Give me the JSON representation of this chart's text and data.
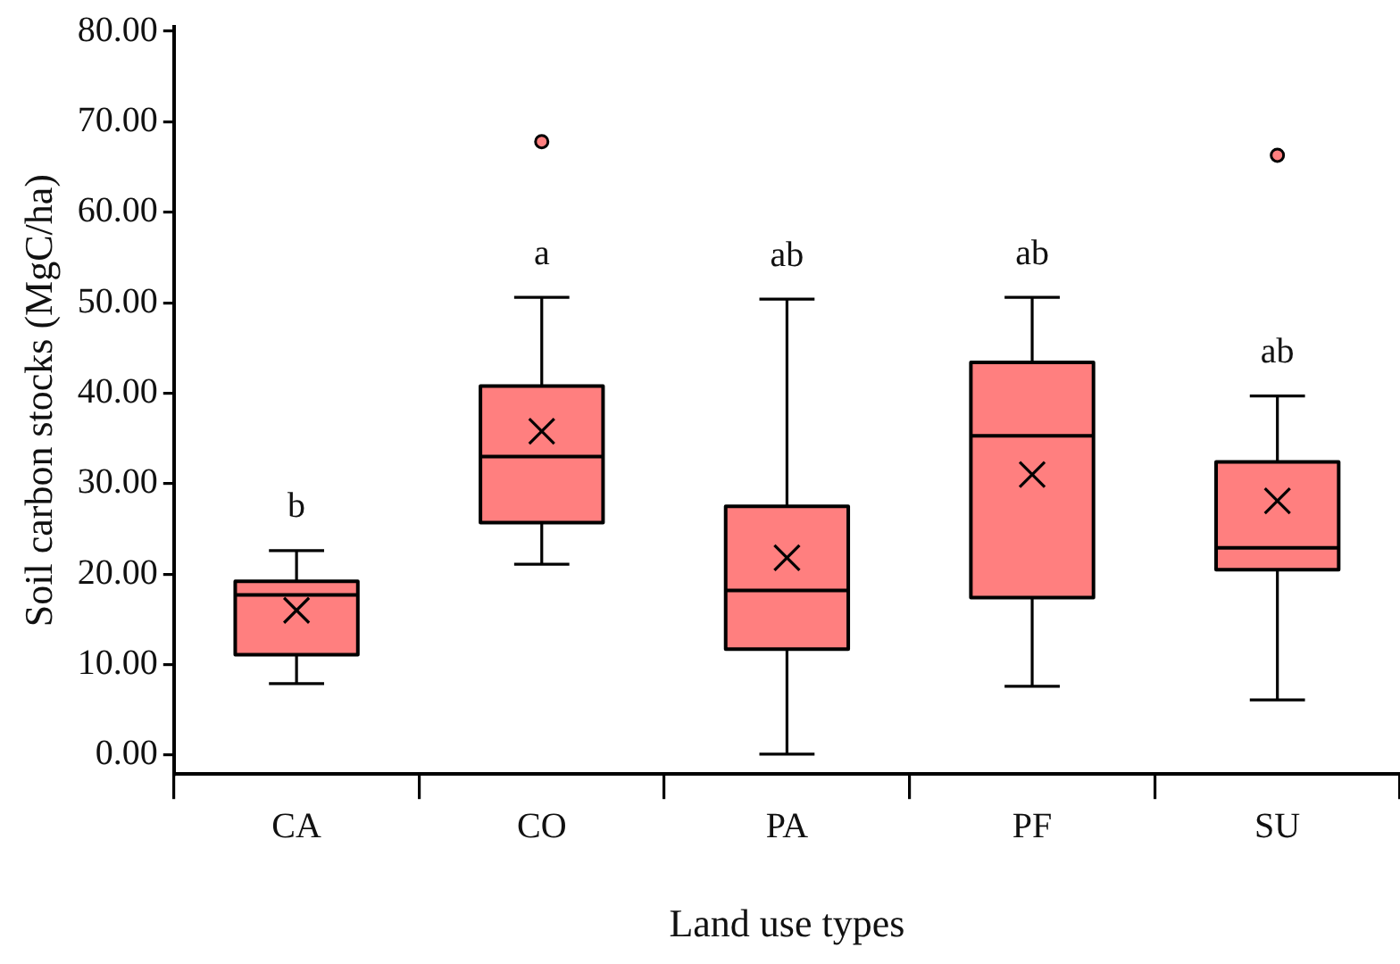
{
  "chart_data": {
    "type": "box",
    "categories": [
      "CA",
      "CO",
      "PA",
      "PF",
      "SU"
    ],
    "color": "#ff7f7f",
    "boxes": [
      {
        "low": 7.9,
        "q1": 11.1,
        "median": 17.7,
        "q3": 19.2,
        "high": 22.6,
        "mean": 16.0
      },
      {
        "low": 21.1,
        "q1": 25.7,
        "median": 33.0,
        "q3": 40.8,
        "high": 50.6,
        "mean": 35.8,
        "outliers": [
          67.8
        ]
      },
      {
        "low": 0.1,
        "q1": 11.7,
        "median": 18.2,
        "q3": 27.5,
        "high": 50.4,
        "mean": 21.8
      },
      {
        "low": 7.6,
        "q1": 17.4,
        "median": 35.3,
        "q3": 43.4,
        "high": 50.6,
        "mean": 31.0
      },
      {
        "low": 6.1,
        "q1": 20.5,
        "median": 22.9,
        "q3": 32.4,
        "high": 39.7,
        "mean": 28.1,
        "outliers": [
          66.3
        ]
      }
    ],
    "ylim": [
      -2.1,
      80.5
    ],
    "yticks": [
      {
        "value": 0,
        "label": "0.00"
      },
      {
        "value": 10,
        "label": "10.00"
      },
      {
        "value": 20,
        "label": "20.00"
      },
      {
        "value": 30,
        "label": "30.00"
      },
      {
        "value": 40,
        "label": "40.00"
      },
      {
        "value": 50,
        "label": "50.00"
      },
      {
        "value": 60,
        "label": "60.00"
      },
      {
        "value": 70,
        "label": "70.00"
      },
      {
        "value": 80,
        "label": "80.00"
      }
    ],
    "xlabel": "Land use types",
    "ylabel": "Soil carbon stocks (MgC/ha)",
    "annotations": [
      "b",
      "a",
      "ab",
      "ab",
      "ab"
    ]
  }
}
